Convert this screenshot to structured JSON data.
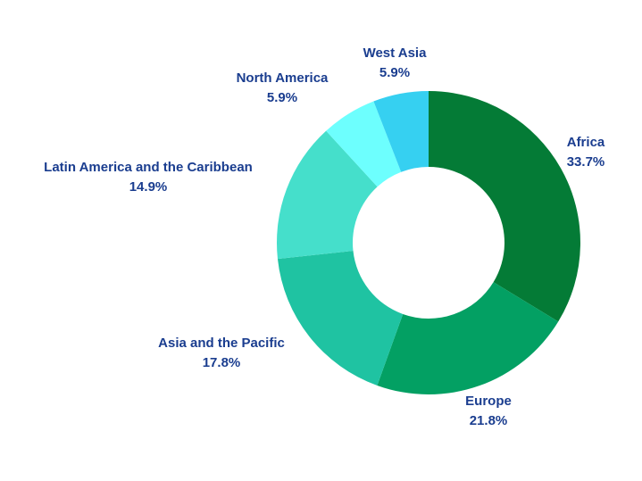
{
  "chart_data": {
    "type": "donut",
    "legend": "none",
    "label_color": "#1a3d8f",
    "slices": [
      {
        "name": "Africa",
        "value": 33.7,
        "label": "33.7%",
        "color": "#047b36"
      },
      {
        "name": "Europe",
        "value": 21.8,
        "label": "21.8%",
        "color": "#03a063"
      },
      {
        "name": "Asia and the Pacific",
        "value": 17.8,
        "label": "17.8%",
        "color": "#1fc3a2"
      },
      {
        "name": "Latin America and the Caribbean",
        "value": 14.9,
        "label": "14.9%",
        "color": "#45dfcb"
      },
      {
        "name": "North America",
        "value": 5.9,
        "label": "5.9%",
        "color": "#6dfffe"
      },
      {
        "name": "West Asia",
        "value": 5.9,
        "label": "5.9%",
        "color": "#36d0f1"
      }
    ]
  }
}
